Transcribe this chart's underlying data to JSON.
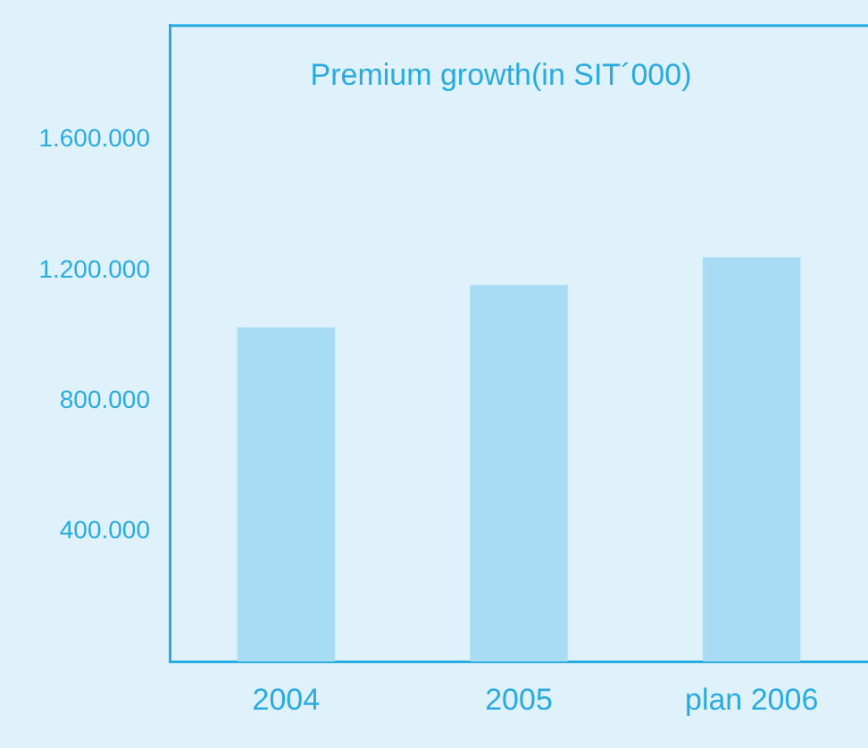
{
  "chart_data": {
    "type": "bar",
    "title": "Premium growth(in SIT´000)",
    "categories": [
      "2004",
      "2005",
      "plan 2006"
    ],
    "values": [
      1025000,
      1155000,
      1240000
    ],
    "color": "#a8dcf4",
    "ylim": [
      0,
      1950000
    ],
    "yticks": [
      {
        "value": 400000,
        "label": "400.000"
      },
      {
        "value": 800000,
        "label": "800.000"
      },
      {
        "value": 1200000,
        "label": "1.200.000"
      },
      {
        "value": 1600000,
        "label": "1.600.000"
      }
    ],
    "grid": false,
    "legend": false
  }
}
